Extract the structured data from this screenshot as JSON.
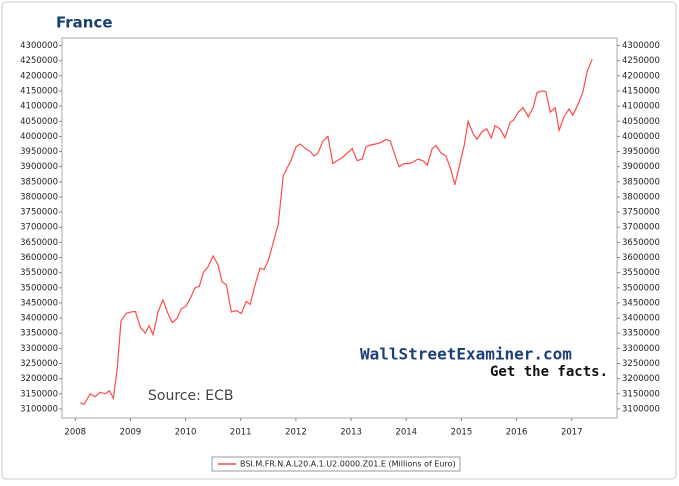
{
  "chart_data": {
    "type": "line",
    "title": "France",
    "x": [
      2008.09,
      2008.16,
      2008.27,
      2008.36,
      2008.45,
      2008.54,
      2008.62,
      2008.69,
      2008.76,
      2008.83,
      2008.92,
      2009.01,
      2009.09,
      2009.18,
      2009.27,
      2009.34,
      2009.41,
      2009.5,
      2009.59,
      2009.68,
      2009.76,
      2009.85,
      2009.92,
      2010.01,
      2010.1,
      2010.17,
      2010.25,
      2010.32,
      2010.41,
      2010.5,
      2010.59,
      2010.66,
      2010.74,
      2010.83,
      2010.92,
      2011.01,
      2011.1,
      2011.17,
      2011.26,
      2011.35,
      2011.42,
      2011.5,
      2011.59,
      2011.68,
      2011.77,
      2011.84,
      2011.91,
      2012.0,
      2012.08,
      2012.17,
      2012.26,
      2012.33,
      2012.4,
      2012.49,
      2012.58,
      2012.67,
      2012.75,
      2012.84,
      2012.93,
      2013.02,
      2013.11,
      2013.2,
      2013.27,
      2013.36,
      2013.45,
      2013.54,
      2013.63,
      2013.71,
      2013.8,
      2013.87,
      2013.96,
      2014.05,
      2014.12,
      2014.21,
      2014.3,
      2014.38,
      2014.47,
      2014.54,
      2014.63,
      2014.72,
      2014.81,
      2014.88,
      2014.96,
      2015.05,
      2015.12,
      2015.21,
      2015.28,
      2015.37,
      2015.46,
      2015.54,
      2015.61,
      2015.7,
      2015.79,
      2015.88,
      2015.95,
      2016.03,
      2016.12,
      2016.21,
      2016.3,
      2016.37,
      2016.46,
      2016.53,
      2016.61,
      2016.7,
      2016.77,
      2016.86,
      2016.95,
      2017.02,
      2017.11,
      2017.2,
      2017.28,
      2017.37
    ],
    "series": [
      {
        "name": "BSI.M.FR.N.A.L20.A.1.U2.0000.Z01.E (Millions of Euro)",
        "color": "#ff4a4a",
        "values": [
          3120000,
          3115000,
          3150000,
          3140000,
          3155000,
          3150000,
          3160000,
          3135000,
          3230000,
          3390000,
          3415000,
          3420000,
          3422000,
          3370000,
          3350000,
          3375000,
          3345000,
          3420000,
          3460000,
          3415000,
          3385000,
          3400000,
          3430000,
          3440000,
          3470000,
          3500000,
          3505000,
          3550000,
          3570000,
          3605000,
          3575000,
          3520000,
          3510000,
          3420000,
          3425000,
          3415000,
          3455000,
          3445000,
          3510000,
          3565000,
          3560000,
          3590000,
          3650000,
          3710000,
          3870000,
          3895000,
          3920000,
          3965000,
          3975000,
          3960000,
          3950000,
          3935000,
          3945000,
          3985000,
          4000000,
          3910000,
          3920000,
          3930000,
          3945000,
          3960000,
          3920000,
          3925000,
          3965000,
          3972000,
          3975000,
          3980000,
          3990000,
          3985000,
          3935000,
          3900000,
          3910000,
          3910000,
          3915000,
          3925000,
          3920000,
          3905000,
          3960000,
          3970000,
          3945000,
          3935000,
          3890000,
          3840000,
          3900000,
          3970000,
          4050000,
          4010000,
          3990000,
          4015000,
          4025000,
          3995000,
          4035000,
          4025000,
          3995000,
          4045000,
          4055000,
          4080000,
          4095000,
          4065000,
          4095000,
          4145000,
          4150000,
          4148000,
          4080000,
          4095000,
          4020000,
          4065000,
          4090000,
          4070000,
          4105000,
          4145000,
          4215000,
          4255000
        ]
      }
    ],
    "xlim": [
      2007.76,
      2017.82
    ],
    "xticks": [
      2008,
      2009,
      2010,
      2011,
      2012,
      2013,
      2014,
      2015,
      2016,
      2017
    ],
    "ylim": [
      3070000,
      4325000
    ],
    "yticks": [
      3100000,
      3150000,
      3200000,
      3250000,
      3300000,
      3350000,
      3400000,
      3450000,
      3500000,
      3550000,
      3600000,
      3650000,
      3700000,
      3750000,
      3800000,
      3850000,
      3900000,
      3950000,
      4000000,
      4050000,
      4100000,
      4150000,
      4200000,
      4250000,
      4300000
    ],
    "y2lim": [
      3070000,
      4325000
    ],
    "y2ticks": [
      3100000,
      3150000,
      3200000,
      3250000,
      3300000,
      3350000,
      3400000,
      3450000,
      3500000,
      3550000,
      3600000,
      3650000,
      3700000,
      3750000,
      3800000,
      3850000,
      3900000,
      3950000,
      4000000,
      4050000,
      4100000,
      4150000,
      4200000,
      4250000,
      4300000
    ],
    "grid": false,
    "annotations": [
      "Source: ECB",
      "WallStreetExaminer.com",
      "Get the facts."
    ]
  }
}
